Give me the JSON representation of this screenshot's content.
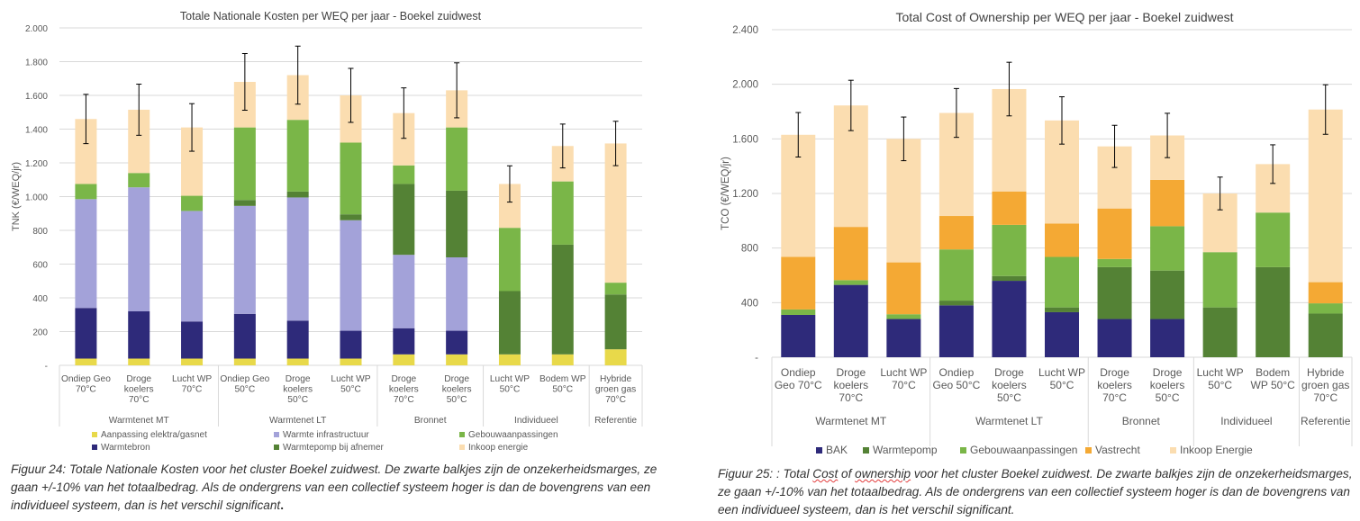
{
  "colors": {
    "grid": "#d9d9d9",
    "axis_text": "#595959",
    "title_text": "#404040",
    "error_bar": "#000000"
  },
  "chart_data": [
    {
      "type": "bar",
      "stacked": true,
      "title": "Totale Nationale Kosten per WEQ per jaar - Boekel zuidwest",
      "ylabel": "TNK (€/WEQ/jr)",
      "ylim": [
        0,
        2000
      ],
      "yticks": [
        0,
        200,
        400,
        600,
        800,
        1000,
        1200,
        1400,
        1600,
        1800,
        2000
      ],
      "ytick_labels": [
        "-",
        "200",
        "400",
        "600",
        "800",
        "1.000",
        "1.200",
        "1.400",
        "1.600",
        "1.800",
        "2.000"
      ],
      "grid": true,
      "legend_position": "bottom",
      "categories": [
        [
          "Ondiep Geo",
          "70°C"
        ],
        [
          "Droge",
          "koelers",
          "70°C"
        ],
        [
          "Lucht WP",
          "70°C"
        ],
        [
          "Ondiep Geo",
          "50°C"
        ],
        [
          "Droge",
          "koelers",
          "50°C"
        ],
        [
          "Lucht WP",
          "50°C"
        ],
        [
          "Droge",
          "koelers",
          "70°C"
        ],
        [
          "Droge",
          "koelers",
          "50°C"
        ],
        [
          "Lucht WP",
          "50°C"
        ],
        [
          "Bodem WP",
          "50°C"
        ],
        [
          "Hybride",
          "groen gas",
          "70°C"
        ]
      ],
      "groups": [
        {
          "label": "Warmtenet MT",
          "count": 3
        },
        {
          "label": "Warmtenet LT",
          "count": 3
        },
        {
          "label": "Bronnet",
          "count": 2
        },
        {
          "label": "Individueel",
          "count": 2
        },
        {
          "label": "Referentie",
          "count": 1
        }
      ],
      "series": [
        {
          "name": "Aanpassing elektra/gasnet",
          "color": "#e8d94a",
          "values": [
            40,
            40,
            40,
            40,
            40,
            40,
            65,
            65,
            65,
            65,
            95
          ]
        },
        {
          "name": "Warmtebron",
          "color": "#2e2a7a",
          "values": [
            300,
            280,
            220,
            265,
            225,
            165,
            155,
            140,
            0,
            0,
            0
          ]
        },
        {
          "name": "Warmte infrastructuur",
          "color": "#a3a2d9",
          "values": [
            645,
            735,
            655,
            640,
            730,
            655,
            435,
            435,
            0,
            0,
            0
          ]
        },
        {
          "name": "Warmtepomp bij afnemer",
          "color": "#548235",
          "values": [
            0,
            0,
            0,
            35,
            35,
            35,
            420,
            395,
            375,
            650,
            325
          ]
        },
        {
          "name": "Gebouwaanpassingen",
          "color": "#7ab648",
          "values": [
            90,
            85,
            90,
            430,
            425,
            425,
            110,
            375,
            375,
            375,
            70
          ]
        },
        {
          "name": "Inkoop energie",
          "color": "#fbddb0",
          "values": [
            385,
            375,
            405,
            270,
            265,
            280,
            310,
            220,
            260,
            210,
            825
          ]
        }
      ],
      "error_margin": "±10%"
    },
    {
      "type": "bar",
      "stacked": true,
      "title": "Total Cost of Ownership per WEQ per jaar  - Boekel zuidwest",
      "ylabel": "TCO (€/WEQ/jr)",
      "ylim": [
        0,
        2400
      ],
      "yticks": [
        0,
        400,
        800,
        1200,
        1600,
        2000,
        2400
      ],
      "ytick_labels": [
        "-",
        "400",
        "800",
        "1.200",
        "1.600",
        "2.000",
        "2.400"
      ],
      "grid": true,
      "legend_position": "bottom",
      "categories": [
        [
          "Ondiep",
          "Geo 70°C"
        ],
        [
          "Droge",
          "koelers",
          "70°C"
        ],
        [
          "Lucht WP",
          "70°C"
        ],
        [
          "Ondiep",
          "Geo 50°C"
        ],
        [
          "Droge",
          "koelers",
          "50°C"
        ],
        [
          "Lucht WP",
          "50°C"
        ],
        [
          "Droge",
          "koelers",
          "70°C"
        ],
        [
          "Droge",
          "koelers",
          "50°C"
        ],
        [
          "Lucht WP",
          "50°C"
        ],
        [
          "Bodem",
          "WP 50°C"
        ],
        [
          "Hybride",
          "groen gas",
          "70°C"
        ]
      ],
      "groups": [
        {
          "label": "Warmtenet MT",
          "count": 3
        },
        {
          "label": "Warmtenet LT",
          "count": 3
        },
        {
          "label": "Bronnet",
          "count": 2
        },
        {
          "label": "Individueel",
          "count": 2
        },
        {
          "label": "Referentie",
          "count": 1
        }
      ],
      "series": [
        {
          "name": "BAK",
          "color": "#2e2a7a",
          "values": [
            310,
            530,
            280,
            380,
            560,
            330,
            280,
            280,
            0,
            0,
            0
          ]
        },
        {
          "name": "Warmtepomp",
          "color": "#548235",
          "values": [
            0,
            0,
            0,
            35,
            35,
            35,
            380,
            355,
            365,
            660,
            320
          ]
        },
        {
          "name": "Gebouwaanpassingen",
          "color": "#7ab648",
          "values": [
            40,
            35,
            35,
            375,
            375,
            370,
            60,
            325,
            405,
            400,
            75
          ]
        },
        {
          "name": "Vastrecht",
          "color": "#f4a934",
          "values": [
            385,
            390,
            380,
            245,
            245,
            245,
            370,
            340,
            0,
            0,
            155
          ]
        },
        {
          "name": "Inkoop Energie",
          "color": "#fbddb0",
          "values": [
            895,
            890,
            905,
            755,
            750,
            755,
            455,
            325,
            430,
            355,
            1265
          ]
        }
      ],
      "error_margin": "±10%"
    }
  ],
  "captions": {
    "left": {
      "part1": "Figuur 24: Totale Nationale Kosten voor het cluster Boekel zuidwest. De zwarte balkjes zijn de onzekerheidsmarges, ze gaan +/-10% van het totaalbedrag. Als de ondergrens van een collectief systeem hoger is dan de bovengrens van een individueel systeem, dan is het verschil significant",
      "end": "."
    },
    "right": {
      "part1": "Figuur 25: : Total ",
      "word1": "Cost",
      "part2": " of ",
      "word2": "ownership",
      "part3": " voor het cluster Boekel zuidwest. De zwarte balkjes zijn de onzekerheidsmarges, ze gaan +/-10% van het totaalbedrag. Als de ondergrens van een collectief systeem hoger is dan de bovengrens van een individueel systeem, dan is het verschil significant."
    }
  }
}
